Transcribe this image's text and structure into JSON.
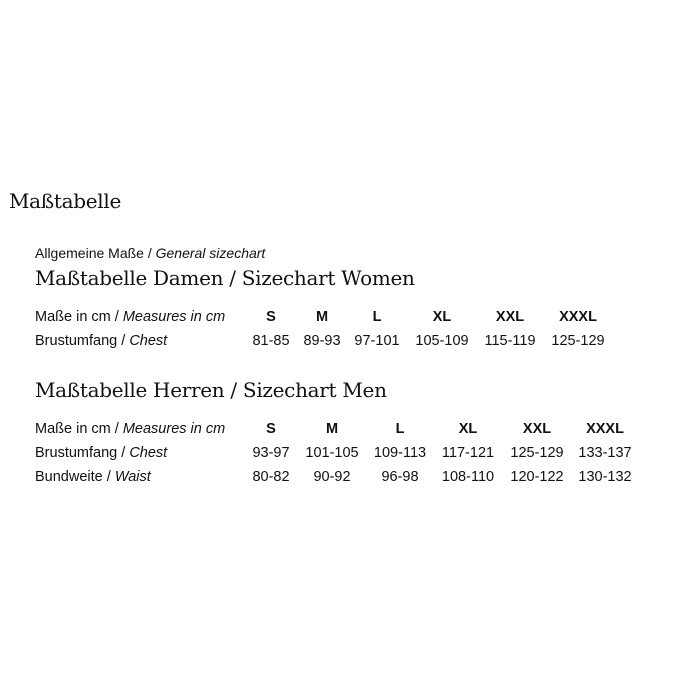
{
  "title": "Maßtabelle",
  "subtitle_de": "Allgemeine Maße",
  "subtitle_en": "General sizechart",
  "women": {
    "heading": "Maßtabelle Damen / Sizechart Women",
    "header_de": "Maße in cm",
    "header_en": "Measures in cm",
    "sizes": [
      "S",
      "M",
      "L",
      "XL",
      "XXL",
      "XXXL"
    ],
    "rows": [
      {
        "label_de": "Brustumfang",
        "label_en": "Chest",
        "values": [
          "81-85",
          "89-93",
          "97-101",
          "105-109",
          "115-119",
          "125-129"
        ]
      }
    ]
  },
  "men": {
    "heading": "Maßtabelle Herren / Sizechart Men",
    "header_de": "Maße in cm",
    "header_en": "Measures in cm",
    "sizes": [
      "S",
      "M",
      "L",
      "XL",
      "XXL",
      "XXXL"
    ],
    "rows": [
      {
        "label_de": "Brustumfang",
        "label_en": "Chest",
        "values": [
          "93-97",
          "101-105",
          "109-113",
          "117-121",
          "125-129",
          "133-137"
        ]
      },
      {
        "label_de": "Bundweite",
        "label_en": "Waist",
        "values": [
          "80-82",
          "90-92",
          "96-98",
          "108-110",
          "120-122",
          "130-132"
        ]
      }
    ]
  }
}
